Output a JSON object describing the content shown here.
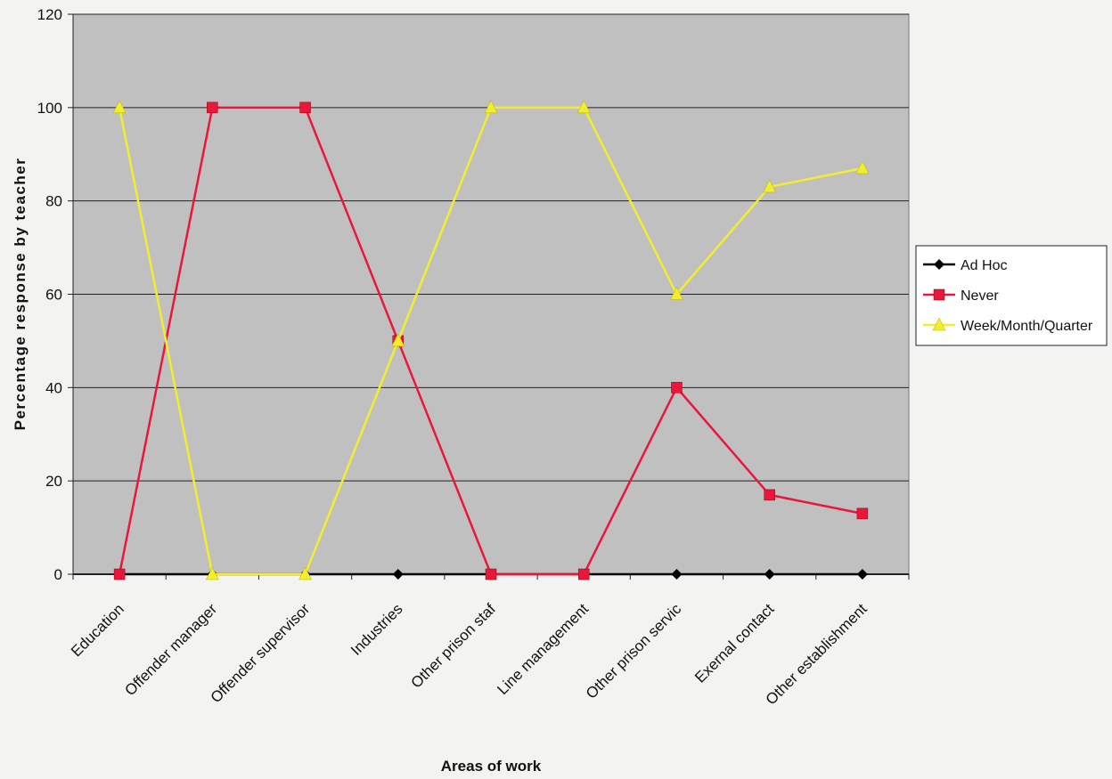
{
  "chart_data": {
    "type": "line",
    "categories": [
      "Education",
      "Offender manager",
      "Offender supervisor",
      "Industries",
      "Other prison staff",
      "Line management",
      "Other prison service",
      "Exernal contacts",
      "Other establishment"
    ],
    "tick_labels_shown": [
      "Education",
      "Offender manager",
      "Offender supervisor",
      "Industries",
      "Other prison staf",
      "Line management",
      "Other prison servic",
      "Exernal contact",
      "Other establishment"
    ],
    "series": [
      {
        "name": "Ad Hoc",
        "color": "#000000",
        "marker": "diamond",
        "values": [
          0,
          0,
          0,
          0,
          0,
          0,
          0,
          0,
          0
        ]
      },
      {
        "name": "Never",
        "color": "#e8173b",
        "marker": "square",
        "values": [
          0,
          100,
          100,
          50,
          0,
          0,
          40,
          17,
          13
        ]
      },
      {
        "name": "Week/Month/Quarter",
        "color": "#f2ee2e",
        "marker": "triangle",
        "values": [
          100,
          0,
          0,
          50,
          100,
          100,
          60,
          83,
          87
        ]
      }
    ],
    "ylabel": "Percentage response by teacher",
    "xlabel": "Areas of work",
    "ylim": [
      0,
      120
    ],
    "yticks": [
      0,
      20,
      40,
      60,
      80,
      100,
      120
    ],
    "grid": true,
    "legend": "right",
    "plot_bg": "#c0c0c0"
  }
}
